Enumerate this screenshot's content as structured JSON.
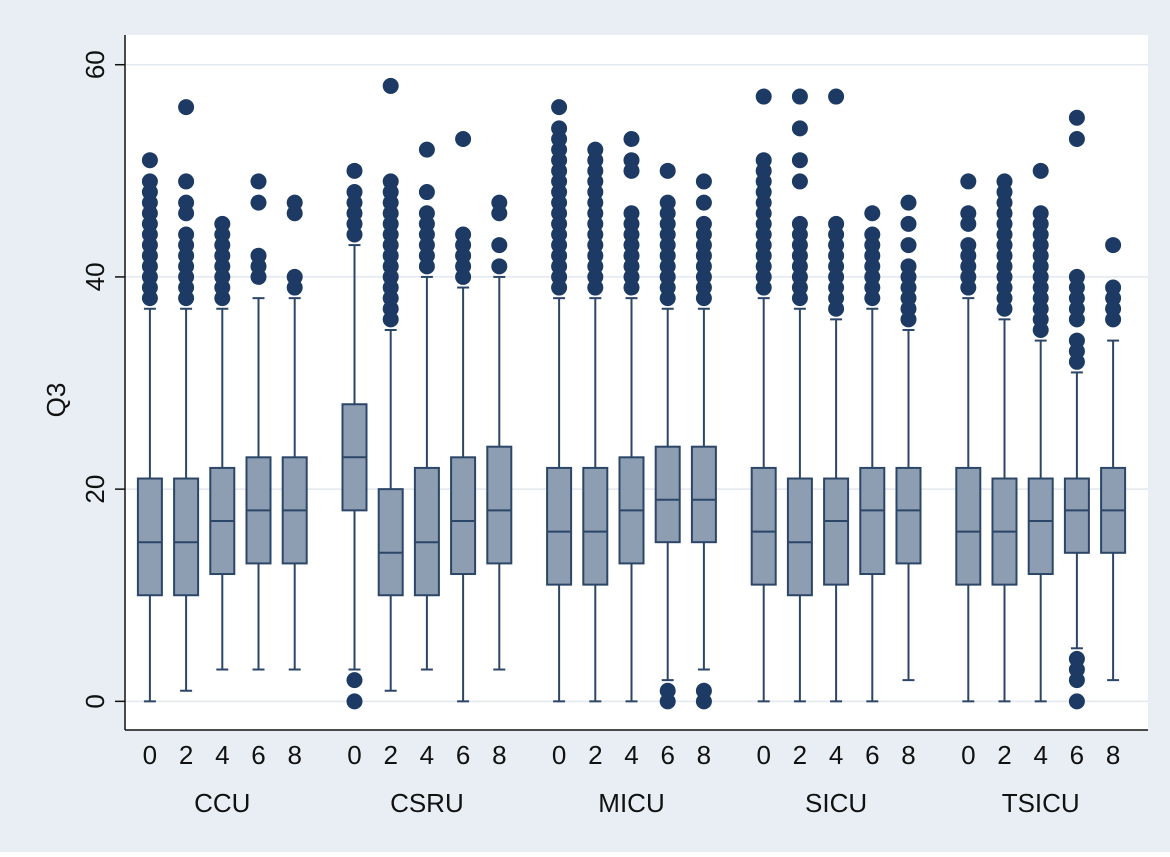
{
  "chart_data": {
    "type": "box",
    "ylabel": "Q3",
    "ylim": [
      -2.7,
      62.8
    ],
    "yticks": [
      0,
      20,
      40,
      60
    ],
    "grid": true,
    "box_color": "#8d9db2",
    "line_color": "#2c4668",
    "outlier_color": "#1c3a63",
    "groups": [
      {
        "name": "CCU",
        "boxes": [
          {
            "label": "0",
            "whisker_low": 0,
            "q1": 10,
            "median": 15,
            "q3": 21,
            "whisker_high": 37,
            "outliers": [
              38,
              39,
              40,
              41,
              42,
              43,
              44,
              45,
              46,
              47,
              48,
              49,
              51
            ]
          },
          {
            "label": "2",
            "whisker_low": 1,
            "q1": 10,
            "median": 15,
            "q3": 21,
            "whisker_high": 37,
            "outliers": [
              38,
              39,
              40,
              41,
              42,
              43,
              44,
              46,
              47,
              49,
              56
            ]
          },
          {
            "label": "4",
            "whisker_low": 3,
            "q1": 12,
            "median": 17,
            "q3": 22,
            "whisker_high": 37,
            "outliers": [
              38,
              39,
              40,
              41,
              42,
              43,
              44,
              45
            ]
          },
          {
            "label": "6",
            "whisker_low": 3,
            "q1": 13,
            "median": 18,
            "q3": 23,
            "whisker_high": 38,
            "outliers": [
              40,
              41,
              42,
              47,
              49
            ]
          },
          {
            "label": "8",
            "whisker_low": 3,
            "q1": 13,
            "median": 18,
            "q3": 23,
            "whisker_high": 38,
            "outliers": [
              39,
              40,
              46,
              47
            ]
          }
        ]
      },
      {
        "name": "CSRU",
        "boxes": [
          {
            "label": "0",
            "whisker_low": 3,
            "q1": 18,
            "median": 23,
            "q3": 28,
            "whisker_high": 43,
            "outliers": [
              0,
              2,
              44,
              45,
              46,
              47,
              48,
              50
            ]
          },
          {
            "label": "2",
            "whisker_low": 1,
            "q1": 10,
            "median": 14,
            "q3": 20,
            "whisker_high": 35,
            "outliers": [
              36,
              37,
              38,
              39,
              40,
              41,
              42,
              43,
              44,
              45,
              46,
              47,
              48,
              49,
              58
            ]
          },
          {
            "label": "4",
            "whisker_low": 3,
            "q1": 10,
            "median": 15,
            "q3": 22,
            "whisker_high": 40,
            "outliers": [
              41,
              42,
              43,
              44,
              45,
              46,
              48,
              52
            ]
          },
          {
            "label": "6",
            "whisker_low": 0,
            "q1": 12,
            "median": 17,
            "q3": 23,
            "whisker_high": 39,
            "outliers": [
              40,
              41,
              42,
              43,
              44,
              53
            ]
          },
          {
            "label": "8",
            "whisker_low": 3,
            "q1": 13,
            "median": 18,
            "q3": 24,
            "whisker_high": 40,
            "outliers": [
              41,
              43,
              46,
              47
            ]
          }
        ]
      },
      {
        "name": "MICU",
        "boxes": [
          {
            "label": "0",
            "whisker_low": 0,
            "q1": 11,
            "median": 16,
            "q3": 22,
            "whisker_high": 38,
            "outliers": [
              39,
              40,
              41,
              42,
              43,
              44,
              45,
              46,
              47,
              48,
              49,
              50,
              51,
              52,
              53,
              54,
              56
            ]
          },
          {
            "label": "2",
            "whisker_low": 0,
            "q1": 11,
            "median": 16,
            "q3": 22,
            "whisker_high": 38,
            "outliers": [
              39,
              40,
              41,
              42,
              43,
              44,
              45,
              46,
              47,
              48,
              49,
              50,
              51,
              52
            ]
          },
          {
            "label": "4",
            "whisker_low": 0,
            "q1": 13,
            "median": 18,
            "q3": 23,
            "whisker_high": 38,
            "outliers": [
              39,
              40,
              41,
              42,
              43,
              44,
              45,
              46,
              50,
              51,
              53
            ]
          },
          {
            "label": "6",
            "whisker_low": 2,
            "q1": 15,
            "median": 19,
            "q3": 24,
            "whisker_high": 37,
            "outliers": [
              0,
              1,
              38,
              39,
              40,
              41,
              42,
              43,
              44,
              45,
              46,
              47,
              50
            ]
          },
          {
            "label": "8",
            "whisker_low": 3,
            "q1": 15,
            "median": 19,
            "q3": 24,
            "whisker_high": 37,
            "outliers": [
              0,
              1,
              38,
              39,
              40,
              41,
              42,
              43,
              44,
              45,
              47,
              49
            ]
          }
        ]
      },
      {
        "name": "SICU",
        "boxes": [
          {
            "label": "0",
            "whisker_low": 0,
            "q1": 11,
            "median": 16,
            "q3": 22,
            "whisker_high": 38,
            "outliers": [
              39,
              40,
              41,
              42,
              43,
              44,
              45,
              46,
              47,
              48,
              49,
              50,
              51,
              57
            ]
          },
          {
            "label": "2",
            "whisker_low": 0,
            "q1": 10,
            "median": 15,
            "q3": 21,
            "whisker_high": 37,
            "outliers": [
              38,
              39,
              40,
              41,
              42,
              43,
              44,
              45,
              49,
              51,
              54,
              57
            ]
          },
          {
            "label": "4",
            "whisker_low": 0,
            "q1": 11,
            "median": 17,
            "q3": 21,
            "whisker_high": 36,
            "outliers": [
              37,
              38,
              39,
              40,
              41,
              42,
              43,
              44,
              45,
              57
            ]
          },
          {
            "label": "6",
            "whisker_low": 0,
            "q1": 12,
            "median": 18,
            "q3": 22,
            "whisker_high": 37,
            "outliers": [
              38,
              39,
              40,
              41,
              42,
              43,
              44,
              46
            ]
          },
          {
            "label": "8",
            "whisker_low": 2,
            "q1": 13,
            "median": 18,
            "q3": 22,
            "whisker_high": 35,
            "outliers": [
              36,
              37,
              38,
              39,
              40,
              41,
              43,
              45,
              47
            ]
          }
        ]
      },
      {
        "name": "TSICU",
        "boxes": [
          {
            "label": "0",
            "whisker_low": 0,
            "q1": 11,
            "median": 16,
            "q3": 22,
            "whisker_high": 38,
            "outliers": [
              39,
              40,
              41,
              42,
              43,
              45,
              46,
              49
            ]
          },
          {
            "label": "2",
            "whisker_low": 0,
            "q1": 11,
            "median": 16,
            "q3": 21,
            "whisker_high": 36,
            "outliers": [
              37,
              38,
              39,
              40,
              41,
              42,
              43,
              44,
              45,
              46,
              47,
              48,
              49
            ]
          },
          {
            "label": "4",
            "whisker_low": 0,
            "q1": 12,
            "median": 17,
            "q3": 21,
            "whisker_high": 34,
            "outliers": [
              35,
              36,
              37,
              38,
              39,
              40,
              41,
              42,
              43,
              44,
              45,
              46,
              50
            ]
          },
          {
            "label": "6",
            "whisker_low": 5,
            "q1": 14,
            "median": 18,
            "q3": 21,
            "whisker_high": 31,
            "outliers": [
              0,
              2,
              3,
              4,
              32,
              33,
              34,
              36,
              37,
              38,
              39,
              40,
              53,
              55
            ]
          },
          {
            "label": "8",
            "whisker_low": 2,
            "q1": 14,
            "median": 18,
            "q3": 22,
            "whisker_high": 34,
            "outliers": [
              36,
              37,
              38,
              39,
              43
            ]
          }
        ]
      }
    ]
  }
}
